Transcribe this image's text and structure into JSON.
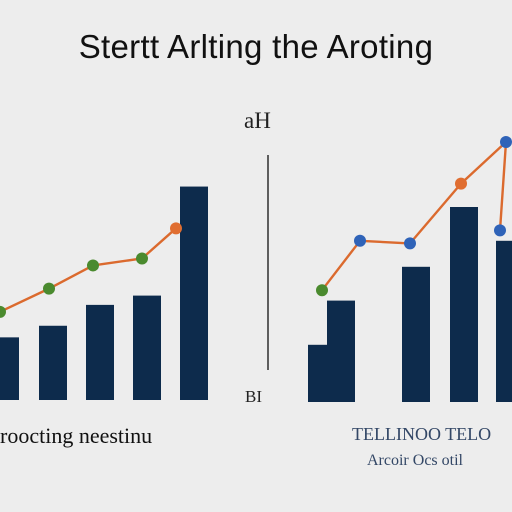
{
  "title": "Stertt Arlting the Aroting",
  "top_corner_label": "aH",
  "bottom_corner_label": "BI",
  "left_bottom_label": "roocting neestinu",
  "right_bottom_label_1": "TELLINOO TELO",
  "right_bottom_label_2": "Arcoir Ocs otil",
  "colors": {
    "background": "#ededed",
    "bar": "#0d2b4c",
    "line": "#db6a2e",
    "green_marker": "#4a8a2e",
    "blue_marker": "#2f63b8",
    "orange_marker": "#e06e31",
    "divider": "#5e5e5e",
    "text_dark": "#111111",
    "text_blue": "#334766"
  },
  "chart_data": [
    {
      "type": "bar",
      "bars": [
        0.27,
        0.32,
        0.41,
        0.45,
        0.92
      ],
      "line": {
        "values": [
          0.38,
          0.48,
          0.58,
          0.61,
          0.74
        ],
        "markers": [
          "green",
          "green",
          "green",
          "green",
          "orange"
        ]
      },
      "ylim": [
        0,
        1
      ]
    },
    {
      "type": "bar",
      "bars": [
        0.22,
        0.39,
        0.52,
        0.75,
        0.62
      ],
      "line": {
        "values": [
          0.43,
          0.62,
          0.61,
          0.84,
          1.0
        ],
        "markers": [
          "green",
          "blue",
          "blue",
          "orange",
          "blue"
        ],
        "tail_value": 0.66,
        "tail_marker": "blue"
      },
      "ylim": [
        0,
        1
      ]
    }
  ]
}
